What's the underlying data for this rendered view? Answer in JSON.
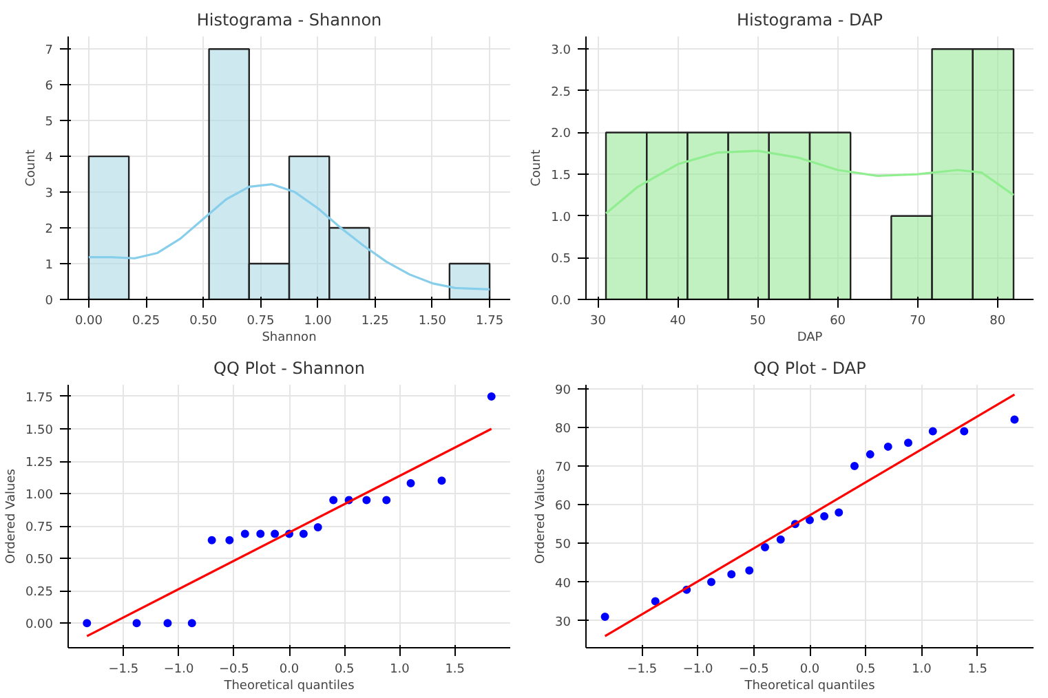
{
  "chart_data": [
    {
      "type": "histogram",
      "title": "Histograma - Shannon",
      "xlabel": "Shannon",
      "ylabel": "Count",
      "bins": [
        0,
        0.175,
        0.35,
        0.525,
        0.7,
        0.875,
        1.05,
        1.225,
        1.4,
        1.575,
        1.75
      ],
      "series": [
        {
          "color": "#add8e6",
          "values": [
            4,
            0,
            0,
            7,
            1,
            4,
            2,
            0,
            0,
            1
          ]
        },
        {
          "type": "line",
          "color": "#87ceeb",
          "x": [
            0,
            0.1,
            0.2,
            0.3,
            0.4,
            0.5,
            0.6,
            0.7,
            0.8,
            0.9,
            1.0,
            1.1,
            1.2,
            1.3,
            1.4,
            1.5,
            1.6,
            1.75
          ],
          "values": [
            1.18,
            1.18,
            1.15,
            1.3,
            1.7,
            2.25,
            2.8,
            3.15,
            3.22,
            3.0,
            2.55,
            2.0,
            1.5,
            1.05,
            0.7,
            0.45,
            0.32,
            0.28
          ]
        }
      ],
      "xlim": [
        -0.09,
        1.84
      ],
      "xticks": [
        {
          "value": 0,
          "label": "0.00"
        },
        0.25,
        {
          "value": 0.5,
          "label": "0.50"
        },
        0.75,
        {
          "value": 1,
          "label": "1.00"
        },
        1.25,
        {
          "value": 1.5,
          "label": "1.50"
        },
        1.75
      ],
      "ylim": [
        0,
        7.35
      ],
      "yticks": [
        0,
        1,
        2,
        3,
        4,
        5,
        6,
        7
      ],
      "grid": true
    },
    {
      "type": "histogram",
      "title": "Histograma - DAP",
      "xlabel": "DAP",
      "ylabel": "Count",
      "bins": [
        31,
        36.1,
        41.2,
        46.3,
        51.4,
        56.5,
        61.6,
        66.7,
        71.8,
        76.9,
        82
      ],
      "series": [
        {
          "color": "#98e698",
          "values": [
            2,
            2,
            2,
            2,
            2,
            2,
            0,
            1,
            3,
            3
          ]
        },
        {
          "type": "line",
          "color": "#90ee90",
          "x": [
            31,
            35,
            40,
            45,
            50,
            55,
            60,
            65,
            70,
            75,
            78,
            82
          ],
          "values": [
            1.03,
            1.35,
            1.62,
            1.76,
            1.78,
            1.7,
            1.55,
            1.48,
            1.5,
            1.55,
            1.52,
            1.25
          ]
        }
      ],
      "xlim": [
        28.5,
        84.5
      ],
      "xticks": [
        30,
        40,
        50,
        60,
        70,
        80
      ],
      "ylim": [
        0,
        3.15
      ],
      "yticks": [
        {
          "value": 0,
          "label": "0.0"
        },
        0.5,
        {
          "value": 1,
          "label": "1.0"
        },
        1.5,
        {
          "value": 2,
          "label": "2.0"
        },
        2.5,
        {
          "value": 3,
          "label": "3.0"
        }
      ],
      "grid": true
    },
    {
      "type": "scatter",
      "title": "QQ Plot - Shannon",
      "xlabel": "Theoretical quantiles",
      "ylabel": "Ordered Values",
      "series": [
        {
          "marker": "circle",
          "color": "#0000ff",
          "x": [
            -1.83,
            -1.38,
            -1.1,
            -0.88,
            -0.7,
            -0.54,
            -0.4,
            -0.26,
            -0.13,
            0,
            0.13,
            0.26,
            0.4,
            0.54,
            0.7,
            0.88,
            1.1,
            1.38,
            1.83
          ],
          "values": [
            0,
            0,
            0,
            0,
            0.64,
            0.64,
            0.69,
            0.69,
            0.69,
            0.69,
            0.69,
            0.74,
            0.95,
            0.95,
            0.95,
            0.95,
            1.08,
            1.1,
            1.75
          ]
        },
        {
          "type": "line",
          "color": "#ff0000",
          "x": [
            -1.83,
            1.83
          ],
          "values": [
            -0.1,
            1.5
          ]
        }
      ],
      "xlim": [
        -2.0,
        2.0
      ],
      "xticks": [
        {
          "value": -1.5,
          "label": "−1.5"
        },
        {
          "value": -1,
          "label": "−1.0"
        },
        {
          "value": -0.5,
          "label": "−0.5"
        },
        {
          "value": 0,
          "label": "0.0"
        },
        0.5,
        {
          "value": 1,
          "label": "1.0"
        },
        1.5
      ],
      "ylim": [
        -0.19,
        1.84
      ],
      "yticks": [
        {
          "value": 0,
          "label": "0.00"
        },
        0.25,
        {
          "value": 0.5,
          "label": "0.50"
        },
        0.75,
        {
          "value": 1,
          "label": "1.00"
        },
        1.25,
        {
          "value": 1.5,
          "label": "1.50"
        },
        1.75
      ],
      "grid": true
    },
    {
      "type": "scatter",
      "title": "QQ Plot - DAP",
      "xlabel": "Theoretical quantiles",
      "ylabel": "Ordered Values",
      "series": [
        {
          "marker": "circle",
          "color": "#0000ff",
          "x": [
            -1.83,
            -1.38,
            -1.1,
            -0.88,
            -0.7,
            -0.54,
            -0.4,
            -0.26,
            -0.13,
            0,
            0.13,
            0.26,
            0.4,
            0.54,
            0.7,
            0.88,
            1.1,
            1.38,
            1.83
          ],
          "values": [
            31,
            35,
            38,
            40,
            42,
            43,
            49,
            51,
            55,
            56,
            57,
            58,
            70,
            73,
            75,
            76,
            79,
            79,
            82
          ]
        },
        {
          "type": "line",
          "color": "#ff0000",
          "x": [
            -1.83,
            1.83
          ],
          "values": [
            26,
            88.5
          ]
        }
      ],
      "xlim": [
        -2.0,
        2.0
      ],
      "xticks": [
        {
          "value": -1.5,
          "label": "−1.5"
        },
        {
          "value": -1,
          "label": "−1.0"
        },
        {
          "value": -0.5,
          "label": "−0.5"
        },
        {
          "value": 0,
          "label": "0.0"
        },
        0.5,
        {
          "value": 1,
          "label": "1.0"
        },
        1.5
      ],
      "ylim": [
        23,
        91
      ],
      "yticks": [
        30,
        40,
        50,
        60,
        70,
        80,
        90
      ],
      "grid": true
    }
  ]
}
